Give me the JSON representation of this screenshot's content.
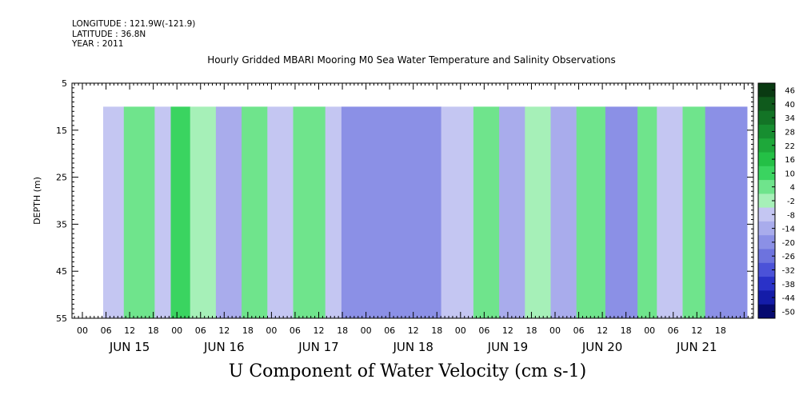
{
  "header": {
    "longitude": "LONGITUDE : 121.9W(-121.9)",
    "latitude": "LATITUDE : 36.8N",
    "year": "YEAR : 2011"
  },
  "title": "Hourly Gridded MBARI Mooring M0 Sea Water Temperature and Salinity Observations",
  "caption": "U Component of Water Velocity (cm s-1)",
  "chart_data": {
    "type": "heatmap",
    "variable": "U Component of Water Velocity (cm s-1)",
    "ylabel": "DEPTH (m)",
    "ylim": [
      5,
      55
    ],
    "y_inverted": true,
    "y_ticks": [
      5,
      15,
      25,
      35,
      45,
      55
    ],
    "data_depth_range": [
      10,
      55
    ],
    "x_hour_ticks": [
      "00",
      "06",
      "12",
      "18",
      "00",
      "06",
      "12",
      "18",
      "00",
      "06",
      "12",
      "18",
      "00",
      "06",
      "12",
      "18",
      "00",
      "06",
      "12",
      "18",
      "00",
      "06",
      "12",
      "18",
      "00",
      "06",
      "12",
      "18"
    ],
    "x_day_labels": [
      "JUN 15",
      "JUN 16",
      "JUN 17",
      "JUN 18",
      "JUN 19",
      "JUN 20",
      "JUN 21"
    ],
    "colorbar": {
      "labels": [
        46,
        40,
        34,
        28,
        22,
        16,
        10,
        4,
        -2,
        -8,
        -14,
        -20,
        -26,
        -32,
        -38,
        -44,
        -50
      ],
      "colors": [
        "#0a3a12",
        "#0f5a1c",
        "#137426",
        "#178e30",
        "#1ea83a",
        "#24c046",
        "#3ad460",
        "#6fe48c",
        "#a6f0b8",
        "#c4c6f2",
        "#a9acec",
        "#8b90e6",
        "#6d73de",
        "#4b52d8",
        "#2a32c8",
        "#141ca8",
        "#060a70"
      ]
    },
    "time_bands": [
      {
        "start": 0.0,
        "end": 0.032,
        "value": -6
      },
      {
        "start": 0.032,
        "end": 0.08,
        "value": 8
      },
      {
        "start": 0.08,
        "end": 0.105,
        "value": -4
      },
      {
        "start": 0.105,
        "end": 0.135,
        "value": 10
      },
      {
        "start": 0.135,
        "end": 0.175,
        "value": 2
      },
      {
        "start": 0.175,
        "end": 0.215,
        "value": -12
      },
      {
        "start": 0.215,
        "end": 0.255,
        "value": 6
      },
      {
        "start": 0.255,
        "end": 0.295,
        "value": -8
      },
      {
        "start": 0.295,
        "end": 0.345,
        "value": 4
      },
      {
        "start": 0.345,
        "end": 0.37,
        "value": -6
      },
      {
        "start": 0.37,
        "end": 0.525,
        "value": -20
      },
      {
        "start": 0.525,
        "end": 0.575,
        "value": -6
      },
      {
        "start": 0.575,
        "end": 0.615,
        "value": 5
      },
      {
        "start": 0.615,
        "end": 0.655,
        "value": -10
      },
      {
        "start": 0.655,
        "end": 0.695,
        "value": 3
      },
      {
        "start": 0.695,
        "end": 0.735,
        "value": -14
      },
      {
        "start": 0.735,
        "end": 0.78,
        "value": 8
      },
      {
        "start": 0.78,
        "end": 0.83,
        "value": -18
      },
      {
        "start": 0.83,
        "end": 0.86,
        "value": 4
      },
      {
        "start": 0.86,
        "end": 0.9,
        "value": -8
      },
      {
        "start": 0.9,
        "end": 0.935,
        "value": 6
      },
      {
        "start": 0.935,
        "end": 1.0,
        "value": -16
      }
    ]
  }
}
